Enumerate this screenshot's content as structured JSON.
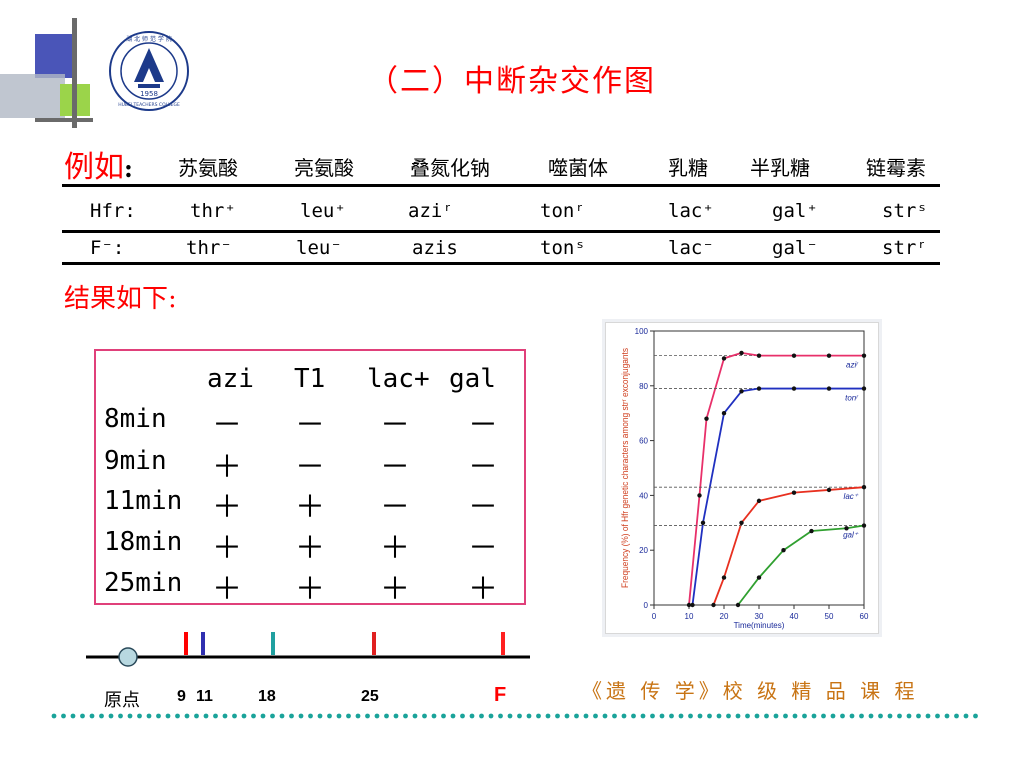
{
  "title": "（二）中断杂交作图",
  "logo": {
    "year": "1958",
    "school_cn": "湖 北 师 范 学 院",
    "school_en": "HUBEI TEACHERS COLLEGE"
  },
  "example": {
    "label": "例如",
    "colon": ":",
    "items": [
      "苏氨酸",
      "亮氨酸",
      "叠氮化钠",
      "噬菌体",
      "乳糖",
      "半乳糖",
      "链霉素"
    ]
  },
  "genotypes": {
    "hfr": {
      "label": "Hfr:",
      "genes": [
        "thr⁺",
        "leu⁺",
        "aziʳ",
        "tonʳ",
        "lac⁺",
        "gal⁺",
        "strˢ"
      ]
    },
    "f_minus": {
      "label": "F⁻:",
      "genes": [
        "thr⁻",
        "leu⁻",
        "azis",
        "tonˢ",
        "lac⁻",
        "gal⁻",
        "strʳ"
      ]
    }
  },
  "results_title": "结果如下:",
  "results": {
    "headers": [
      "azi",
      "T1",
      "lac+",
      "gal"
    ],
    "rows": [
      {
        "time": "8min",
        "signs": [
          "－",
          "－",
          "－",
          "－"
        ]
      },
      {
        "time": "9min",
        "signs": [
          "＋",
          "－",
          "－",
          "－"
        ]
      },
      {
        "time": "11min",
        "signs": [
          "＋",
          "＋",
          "－",
          "－"
        ]
      },
      {
        "time": "18min",
        "signs": [
          "＋",
          "＋",
          "＋",
          "－"
        ]
      },
      {
        "time": "25min",
        "signs": [
          "＋",
          "＋",
          "＋",
          "＋"
        ]
      }
    ]
  },
  "map": {
    "origin_label": "原点",
    "ticks": [
      "9",
      "11",
      "18",
      "25"
    ],
    "end_label": "F",
    "marker_colors": [
      "#ff0000",
      "#3030b0",
      "#20a0a0",
      "#e02020",
      "#ff2020"
    ]
  },
  "chart_data": {
    "type": "line",
    "title": "",
    "xlabel": "Time(minutes)",
    "ylabel": "Frequency (%) of Hfr genetic characters among strʳ exconjugants",
    "xlim": [
      0,
      60
    ],
    "ylim": [
      0,
      100
    ],
    "xticks": [
      0,
      10,
      20,
      30,
      40,
      50,
      60
    ],
    "yticks": [
      0,
      20,
      40,
      60,
      80,
      100
    ],
    "series": [
      {
        "name": "aziʳ",
        "color": "#e8306a",
        "x": [
          10,
          13,
          15,
          20,
          25,
          30,
          40,
          50,
          60
        ],
        "y": [
          0,
          40,
          68,
          90,
          92,
          91,
          91,
          91,
          91
        ]
      },
      {
        "name": "tonʳ",
        "color": "#2030c0",
        "x": [
          11,
          14,
          20,
          25,
          30,
          40,
          50,
          60
        ],
        "y": [
          0,
          30,
          70,
          78,
          79,
          79,
          79,
          79
        ]
      },
      {
        "name": "lac⁺",
        "color": "#e83020",
        "x": [
          17,
          20,
          25,
          30,
          40,
          50,
          60
        ],
        "y": [
          0,
          10,
          30,
          38,
          41,
          42,
          43
        ]
      },
      {
        "name": "gal⁺",
        "color": "#30a030",
        "x": [
          24,
          30,
          37,
          45,
          55,
          60
        ],
        "y": [
          0,
          10,
          20,
          27,
          28,
          29
        ]
      }
    ]
  },
  "footer": {
    "course": "《遗 传 学》校 级 精 品 课 程"
  }
}
